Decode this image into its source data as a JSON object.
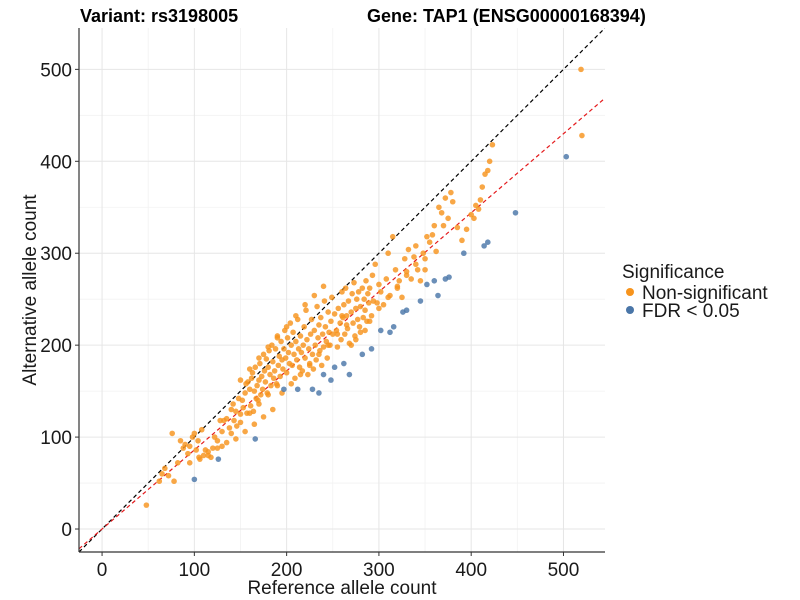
{
  "chart_data": {
    "type": "scatter",
    "title_variant": "Variant: rs3198005",
    "title_gene": "Gene: TAP1 (ENSG00000168394)",
    "xlabel": "Reference allele count",
    "ylabel": "Alternative allele count",
    "xlim": [
      -25,
      545
    ],
    "ylim": [
      -25,
      545
    ],
    "xticks": [
      0,
      100,
      200,
      300,
      400,
      500
    ],
    "yticks": [
      0,
      100,
      200,
      300,
      400,
      500
    ],
    "grid": true,
    "legend": {
      "title": "Significance",
      "position": "right",
      "entries": [
        {
          "label": "Non-significant",
          "color": "#F7941D"
        },
        {
          "label": "FDR < 0.05",
          "color": "#4A76A8"
        }
      ]
    },
    "reference_lines": [
      {
        "name": "identity",
        "slope": 1.0,
        "intercept": 0,
        "color": "#000000",
        "style": "dashed"
      },
      {
        "name": "fit",
        "slope": 0.86,
        "intercept": 0,
        "color": "#E41A1C",
        "style": "dashed"
      }
    ],
    "series": [
      {
        "name": "Non-significant",
        "color": "#F7941D",
        "points": [
          [
            48,
            26
          ],
          [
            62,
            52
          ],
          [
            65,
            60
          ],
          [
            68,
            66
          ],
          [
            72,
            58
          ],
          [
            76,
            104
          ],
          [
            78,
            52
          ],
          [
            82,
            72
          ],
          [
            85,
            96
          ],
          [
            88,
            88
          ],
          [
            90,
            92
          ],
          [
            93,
            82
          ],
          [
            95,
            90
          ],
          [
            98,
            100
          ],
          [
            100,
            104
          ],
          [
            102,
            86
          ],
          [
            104,
            96
          ],
          [
            106,
            76
          ],
          [
            108,
            108
          ],
          [
            110,
            80
          ],
          [
            112,
            86
          ],
          [
            115,
            80
          ],
          [
            118,
            78
          ],
          [
            120,
            88
          ],
          [
            122,
            100
          ],
          [
            125,
            96
          ],
          [
            128,
            118
          ],
          [
            130,
            106
          ],
          [
            132,
            118
          ],
          [
            135,
            120
          ],
          [
            138,
            110
          ],
          [
            140,
            130
          ],
          [
            142,
            136
          ],
          [
            143,
            118
          ],
          [
            145,
            128
          ],
          [
            146,
            112
          ],
          [
            148,
            142
          ],
          [
            150,
            125
          ],
          [
            152,
            140
          ],
          [
            153,
            132
          ],
          [
            155,
            148
          ],
          [
            156,
            158
          ],
          [
            157,
            126
          ],
          [
            158,
            160
          ],
          [
            160,
            152
          ],
          [
            161,
            134
          ],
          [
            162,
            164
          ],
          [
            163,
            170
          ],
          [
            164,
            128
          ],
          [
            165,
            150
          ],
          [
            166,
            176
          ],
          [
            167,
            142
          ],
          [
            168,
            156
          ],
          [
            169,
            140
          ],
          [
            170,
            162
          ],
          [
            171,
            180
          ],
          [
            172,
            146
          ],
          [
            173,
            166
          ],
          [
            174,
            152
          ],
          [
            175,
            190
          ],
          [
            176,
            172
          ],
          [
            177,
            160
          ],
          [
            178,
            185
          ],
          [
            179,
            148
          ],
          [
            180,
            176
          ],
          [
            181,
            194
          ],
          [
            182,
            168
          ],
          [
            183,
            156
          ],
          [
            184,
            200
          ],
          [
            185,
            182
          ],
          [
            186,
            164
          ],
          [
            187,
            172
          ],
          [
            188,
            196
          ],
          [
            189,
            158
          ],
          [
            190,
            210
          ],
          [
            191,
            178
          ],
          [
            192,
            188
          ],
          [
            193,
            166
          ],
          [
            194,
            204
          ],
          [
            195,
            184
          ],
          [
            196,
            174
          ],
          [
            197,
            196
          ],
          [
            198,
            216
          ],
          [
            199,
            186
          ],
          [
            200,
            170
          ],
          [
            201,
            208
          ],
          [
            202,
            192
          ],
          [
            203,
            180
          ],
          [
            204,
            224
          ],
          [
            205,
            200
          ],
          [
            206,
            178
          ],
          [
            207,
            214
          ],
          [
            208,
            190
          ],
          [
            209,
            164
          ],
          [
            210,
            204
          ],
          [
            211,
            184
          ],
          [
            212,
            228
          ],
          [
            213,
            196
          ],
          [
            214,
            176
          ],
          [
            215,
            210
          ],
          [
            216,
            192
          ],
          [
            217,
            172
          ],
          [
            218,
            200
          ],
          [
            219,
            220
          ],
          [
            220,
            186
          ],
          [
            221,
            238
          ],
          [
            222,
            206
          ],
          [
            223,
            168
          ],
          [
            224,
            196
          ],
          [
            225,
            180
          ],
          [
            226,
            212
          ],
          [
            227,
            228
          ],
          [
            228,
            190
          ],
          [
            229,
            174
          ],
          [
            230,
            216
          ],
          [
            231,
            200
          ],
          [
            232,
            184
          ],
          [
            233,
            242
          ],
          [
            234,
            208
          ],
          [
            235,
            222
          ],
          [
            236,
            194
          ],
          [
            237,
            230
          ],
          [
            238,
            178
          ],
          [
            239,
            212
          ],
          [
            240,
            198
          ],
          [
            241,
            248
          ],
          [
            242,
            220
          ],
          [
            243,
            204
          ],
          [
            244,
            186
          ],
          [
            245,
            236
          ],
          [
            246,
            214
          ],
          [
            247,
            200
          ],
          [
            248,
            226
          ],
          [
            249,
            252
          ],
          [
            250,
            212
          ],
          [
            252,
            234
          ],
          [
            254,
            216
          ],
          [
            255,
            198
          ],
          [
            256,
            240
          ],
          [
            258,
            224
          ],
          [
            259,
            206
          ],
          [
            260,
            258
          ],
          [
            261,
            230
          ],
          [
            262,
            244
          ],
          [
            263,
            212
          ],
          [
            264,
            262
          ],
          [
            265,
            232
          ],
          [
            266,
            218
          ],
          [
            267,
            248
          ],
          [
            268,
            202
          ],
          [
            270,
            236
          ],
          [
            271,
            256
          ],
          [
            272,
            224
          ],
          [
            273,
            268
          ],
          [
            274,
            210
          ],
          [
            275,
            240
          ],
          [
            276,
            250
          ],
          [
            277,
            228
          ],
          [
            278,
            258
          ],
          [
            279,
            220
          ],
          [
            280,
            242
          ],
          [
            282,
            262
          ],
          [
            283,
            230
          ],
          [
            284,
            250
          ],
          [
            285,
            238
          ],
          [
            286,
            270
          ],
          [
            287,
            226
          ],
          [
            288,
            256
          ],
          [
            289,
            246
          ],
          [
            290,
            262
          ],
          [
            292,
            232
          ],
          [
            293,
            276
          ],
          [
            294,
            248
          ],
          [
            296,
            288
          ],
          [
            298,
            246
          ],
          [
            300,
            266
          ],
          [
            302,
            258
          ],
          [
            305,
            244
          ],
          [
            308,
            272
          ],
          [
            310,
            300
          ],
          [
            312,
            254
          ],
          [
            315,
            318
          ],
          [
            318,
            282
          ],
          [
            320,
            264
          ],
          [
            322,
            270
          ],
          [
            325,
            252
          ],
          [
            328,
            294
          ],
          [
            330,
            280
          ],
          [
            332,
            304
          ],
          [
            335,
            272
          ],
          [
            338,
            296
          ],
          [
            340,
            308
          ],
          [
            342,
            282
          ],
          [
            345,
            270
          ],
          [
            348,
            300
          ],
          [
            350,
            294
          ],
          [
            352,
            318
          ],
          [
            355,
            312
          ],
          [
            358,
            320
          ],
          [
            360,
            330
          ],
          [
            362,
            302
          ],
          [
            365,
            350
          ],
          [
            368,
            344
          ],
          [
            370,
            330
          ],
          [
            372,
            360
          ],
          [
            375,
            338
          ],
          [
            378,
            366
          ],
          [
            380,
            356
          ],
          [
            385,
            328
          ],
          [
            390,
            314
          ],
          [
            395,
            326
          ],
          [
            400,
            342
          ],
          [
            403,
            338
          ],
          [
            405,
            352
          ],
          [
            408,
            348
          ],
          [
            410,
            358
          ],
          [
            412,
            372
          ],
          [
            415,
            386
          ],
          [
            418,
            390
          ],
          [
            420,
            400
          ],
          [
            423,
            418
          ],
          [
            519,
            500
          ],
          [
            520,
            428
          ],
          [
            130,
            90
          ],
          [
            140,
            104
          ],
          [
            150,
            116
          ],
          [
            160,
            126
          ],
          [
            170,
            136
          ],
          [
            180,
            146
          ],
          [
            190,
            156
          ],
          [
            150,
            162
          ],
          [
            160,
            174
          ],
          [
            170,
            186
          ],
          [
            180,
            198
          ],
          [
            190,
            208
          ],
          [
            200,
            220
          ],
          [
            210,
            232
          ],
          [
            220,
            244
          ],
          [
            230,
            254
          ],
          [
            240,
            264
          ],
          [
            260,
            232
          ],
          [
            270,
            200
          ],
          [
            280,
            214
          ],
          [
            290,
            226
          ],
          [
            300,
            240
          ],
          [
            310,
            252
          ],
          [
            320,
            262
          ],
          [
            330,
            276
          ],
          [
            340,
            288
          ],
          [
            350,
            282
          ],
          [
            195,
            148
          ],
          [
            205,
            158
          ],
          [
            215,
            168
          ],
          [
            225,
            178
          ],
          [
            235,
            190
          ],
          [
            245,
            200
          ],
          [
            255,
            212
          ],
          [
            265,
            222
          ],
          [
            275,
            206
          ],
          [
            285,
            216
          ],
          [
            185,
            130
          ],
          [
            175,
            122
          ],
          [
            165,
            114
          ],
          [
            155,
            106
          ],
          [
            145,
            98
          ],
          [
            135,
            94
          ],
          [
            125,
            88
          ],
          [
            115,
            84
          ],
          [
            105,
            78
          ],
          [
            95,
            72
          ]
        ]
      },
      {
        "name": "FDR < 0.05",
        "color": "#4A76A8",
        "points": [
          [
            100,
            54
          ],
          [
            126,
            76
          ],
          [
            166,
            98
          ],
          [
            228,
            152
          ],
          [
            235,
            148
          ],
          [
            240,
            168
          ],
          [
            248,
            162
          ],
          [
            252,
            176
          ],
          [
            262,
            180
          ],
          [
            268,
            168
          ],
          [
            282,
            190
          ],
          [
            292,
            196
          ],
          [
            302,
            216
          ],
          [
            312,
            214
          ],
          [
            316,
            220
          ],
          [
            326,
            236
          ],
          [
            330,
            238
          ],
          [
            345,
            248
          ],
          [
            352,
            266
          ],
          [
            360,
            270
          ],
          [
            364,
            254
          ],
          [
            372,
            272
          ],
          [
            376,
            274
          ],
          [
            392,
            300
          ],
          [
            414,
            308
          ],
          [
            418,
            312
          ],
          [
            448,
            344
          ],
          [
            503,
            405
          ],
          [
            197,
            152
          ],
          [
            212,
            152
          ]
        ]
      }
    ]
  }
}
